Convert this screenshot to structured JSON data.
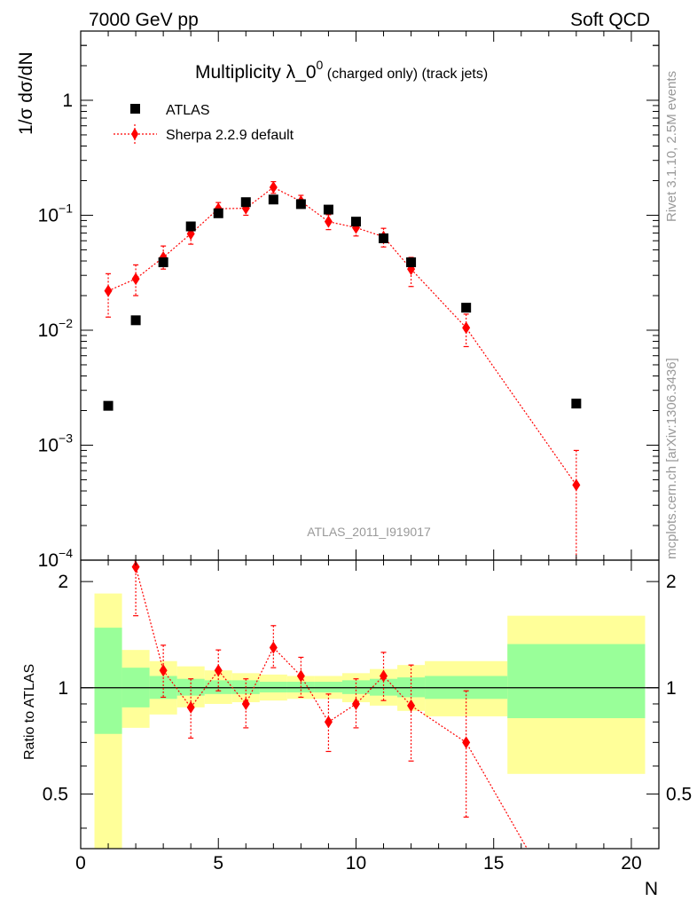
{
  "header": {
    "left": "7000 GeV pp",
    "right": "Soft QCD"
  },
  "title": {
    "main": "Multiplicity λ_0",
    "sup": "0",
    "sub": " (charged only) (track jets)"
  },
  "side_labels": {
    "rivet": "Rivet 3.1.10,  2.5M events",
    "mcplots": "mcplots.cern.ch [arXiv:1306.3436]"
  },
  "watermark": "ATLAS_2011_I919017",
  "legend": {
    "atlas": "ATLAS",
    "sherpa": "Sherpa 2.2.9 default"
  },
  "colors": {
    "mc": "#ff0000",
    "data": "#000000",
    "band_inner": "#99ff99",
    "band_outer": "#ffff99"
  },
  "chart_data": {
    "type": "scatter",
    "title": "Multiplicity λ_0^0 (charged only) (track jets)",
    "xlabel": "N",
    "ylabel": "1/σ dσ/dN",
    "ratio_ylabel": "Ratio to ATLAS",
    "xlim": [
      0,
      21
    ],
    "ylim_log": [
      0.0001,
      4
    ],
    "ratio_ylim": [
      0.35,
      2.3
    ],
    "x_ticks": [
      0,
      5,
      10,
      15,
      20
    ],
    "x_tick_labels": [
      "0",
      "5",
      "10",
      "15",
      "20"
    ],
    "y_ticks": [
      {
        "value": 1,
        "base": "1",
        "exp": ""
      },
      {
        "value": 0.1,
        "base": "10",
        "exp": "−1"
      },
      {
        "value": 0.01,
        "base": "10",
        "exp": "−2"
      },
      {
        "value": 0.001,
        "base": "10",
        "exp": "−3"
      },
      {
        "value": 0.0001,
        "base": "10",
        "exp": "−4"
      }
    ],
    "ratio_ticks": [
      {
        "value": 2,
        "label": "2"
      },
      {
        "value": 1,
        "label": "1"
      },
      {
        "value": 0.5,
        "label": "0.5"
      }
    ],
    "atlas": {
      "name": "ATLAS",
      "x": [
        1,
        2,
        3,
        4,
        5,
        6,
        7,
        8,
        9,
        10,
        11,
        12,
        14,
        18
      ],
      "y": [
        0.0022,
        0.0122,
        0.039,
        0.08,
        0.104,
        0.13,
        0.137,
        0.125,
        0.112,
        0.088,
        0.063,
        0.039,
        0.0157,
        0.0023
      ]
    },
    "sherpa": {
      "name": "Sherpa 2.2.9 default",
      "x": [
        1,
        2,
        3,
        4,
        5,
        6,
        7,
        8,
        9,
        10,
        11,
        12,
        14,
        18
      ],
      "y": [
        0.022,
        0.028,
        0.043,
        0.069,
        0.114,
        0.115,
        0.175,
        0.132,
        0.088,
        0.078,
        0.065,
        0.034,
        0.0105,
        0.00045
      ],
      "ylow": [
        0.013,
        0.02,
        0.034,
        0.056,
        0.1,
        0.1,
        0.155,
        0.115,
        0.075,
        0.066,
        0.053,
        0.024,
        0.0072,
        8e-05
      ],
      "yhigh": [
        0.031,
        0.037,
        0.054,
        0.082,
        0.129,
        0.131,
        0.196,
        0.149,
        0.101,
        0.09,
        0.077,
        0.043,
        0.0138,
        0.0009
      ]
    },
    "ratio": {
      "x": [
        2,
        3,
        4,
        5,
        6,
        7,
        8,
        9,
        10,
        11,
        12,
        14
      ],
      "y": [
        2.2,
        1.12,
        0.88,
        1.12,
        0.9,
        1.3,
        1.08,
        0.8,
        0.9,
        1.08,
        0.89,
        0.7
      ],
      "ylow": [
        1.6,
        0.94,
        0.72,
        0.98,
        0.77,
        1.14,
        0.94,
        0.66,
        0.77,
        0.92,
        0.62,
        0.43
      ],
      "yhigh": [
        2.6,
        1.32,
        1.06,
        1.28,
        1.06,
        1.5,
        1.22,
        0.96,
        1.06,
        1.26,
        1.16,
        0.98
      ],
      "offscale_x": [
        1,
        18
      ],
      "offscale_y": [
        10,
        0.2
      ]
    },
    "bands": [
      {
        "x0": 0.5,
        "x1": 1.5,
        "in_lo": 0.74,
        "in_hi": 1.48,
        "out_lo": 0.35,
        "out_hi": 1.85
      },
      {
        "x0": 1.5,
        "x1": 2.5,
        "in_lo": 0.88,
        "in_hi": 1.14,
        "out_lo": 0.77,
        "out_hi": 1.28
      },
      {
        "x0": 2.5,
        "x1": 3.5,
        "in_lo": 0.93,
        "in_hi": 1.08,
        "out_lo": 0.84,
        "out_hi": 1.19
      },
      {
        "x0": 3.5,
        "x1": 4.5,
        "in_lo": 0.95,
        "in_hi": 1.06,
        "out_lo": 0.88,
        "out_hi": 1.15
      },
      {
        "x0": 4.5,
        "x1": 5.5,
        "in_lo": 0.96,
        "in_hi": 1.05,
        "out_lo": 0.9,
        "out_hi": 1.12
      },
      {
        "x0": 5.5,
        "x1": 6.5,
        "in_lo": 0.96,
        "in_hi": 1.05,
        "out_lo": 0.91,
        "out_hi": 1.1
      },
      {
        "x0": 6.5,
        "x1": 7.5,
        "in_lo": 0.97,
        "in_hi": 1.04,
        "out_lo": 0.92,
        "out_hi": 1.09
      },
      {
        "x0": 7.5,
        "x1": 8.5,
        "in_lo": 0.97,
        "in_hi": 1.04,
        "out_lo": 0.93,
        "out_hi": 1.08
      },
      {
        "x0": 8.5,
        "x1": 9.5,
        "in_lo": 0.97,
        "in_hi": 1.04,
        "out_lo": 0.93,
        "out_hi": 1.08
      },
      {
        "x0": 9.5,
        "x1": 10.5,
        "in_lo": 0.96,
        "in_hi": 1.05,
        "out_lo": 0.91,
        "out_hi": 1.1
      },
      {
        "x0": 10.5,
        "x1": 11.5,
        "in_lo": 0.95,
        "in_hi": 1.06,
        "out_lo": 0.89,
        "out_hi": 1.13
      },
      {
        "x0": 11.5,
        "x1": 12.5,
        "in_lo": 0.94,
        "in_hi": 1.07,
        "out_lo": 0.86,
        "out_hi": 1.16
      },
      {
        "x0": 12.5,
        "x1": 15.5,
        "in_lo": 0.93,
        "in_hi": 1.08,
        "out_lo": 0.83,
        "out_hi": 1.19
      },
      {
        "x0": 15.5,
        "x1": 20.5,
        "in_lo": 0.82,
        "in_hi": 1.33,
        "out_lo": 0.57,
        "out_hi": 1.6
      }
    ]
  }
}
